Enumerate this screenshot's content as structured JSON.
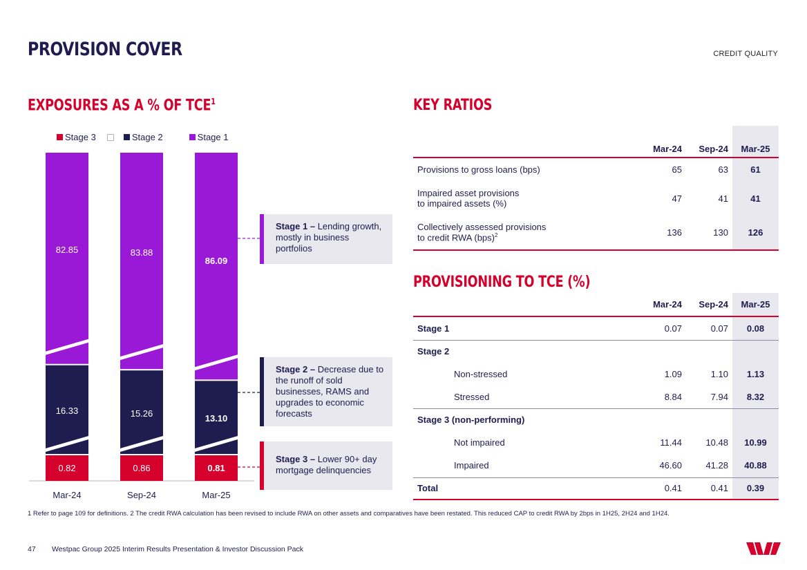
{
  "header": {
    "title": "PROVISION COVER",
    "section": "CREDIT QUALITY"
  },
  "left": {
    "title": "EXPOSURES AS A % OF TCE",
    "title_sup": "1",
    "legend": [
      {
        "label": "Stage 3",
        "color": "#d5002b"
      },
      {
        "label": "",
        "color": "#ffffff"
      },
      {
        "label": "Stage 2",
        "color": "#1f1c4f"
      },
      {
        "label": "Stage 1",
        "color": "#9a19d6"
      }
    ]
  },
  "chart_data": {
    "type": "bar",
    "stacked": true,
    "categories": [
      "Mar-24",
      "Sep-24",
      "Mar-25"
    ],
    "series": [
      {
        "name": "Stage 3",
        "values": [
          0.82,
          0.86,
          0.81
        ],
        "labels": [
          "0.82",
          "0.86",
          "0.81"
        ],
        "color": "#d5002b"
      },
      {
        "name": "Stage 2",
        "values": [
          16.33,
          15.26,
          13.1
        ],
        "labels": [
          "16.33",
          "15.26",
          "13.10"
        ],
        "color": "#1f1c4f"
      },
      {
        "name": "Stage 1",
        "values": [
          82.85,
          83.88,
          86.09
        ],
        "labels": [
          "82.85",
          "83.88",
          "86.09"
        ],
        "color": "#9a19d6"
      }
    ],
    "highlight_category": "Mar-25",
    "axis_break": true
  },
  "callouts": [
    {
      "bold": "Stage 1 –",
      "text": " Lending growth, mostly in business portfolios",
      "color": "#9a19d6"
    },
    {
      "bold": "Stage 2 –",
      "text": " Decrease due to the runoff of sold businesses, RAMS and upgrades to economic forecasts",
      "color": "#1f1c4f"
    },
    {
      "bold": "Stage 3 –",
      "text": " Lower 90+ day mortgage delinquencies",
      "color": "#d5002b"
    }
  ],
  "key_ratios": {
    "title": "KEY RATIOS",
    "columns": [
      "Mar-24",
      "Sep-24",
      "Mar-25"
    ],
    "rows": [
      {
        "label": "Provisions to gross loans (bps)",
        "label2": "",
        "sup": "",
        "values": [
          "65",
          "63",
          "61"
        ]
      },
      {
        "label": "Impaired asset provisions",
        "label2": "to impaired assets (%)",
        "sup": "",
        "values": [
          "47",
          "41",
          "41"
        ]
      },
      {
        "label": "Collectively assessed provisions",
        "label2": "to credit RWA (bps)",
        "sup": "2",
        "values": [
          "136",
          "130",
          "126"
        ]
      }
    ]
  },
  "provisioning": {
    "title": "PROVISIONING TO TCE (%)",
    "columns": [
      "Mar-24",
      "Sep-24",
      "Mar-25"
    ],
    "rows": [
      {
        "label": "Stage 1",
        "values": [
          "0.07",
          "0.07",
          "0.08"
        ]
      },
      {
        "label": "Stage 2",
        "values": [
          "",
          "",
          ""
        ]
      },
      {
        "label": "Non-stressed",
        "values": [
          "1.09",
          "1.10",
          "1.13"
        ]
      },
      {
        "label": "Stressed",
        "values": [
          "8.84",
          "7.94",
          "8.32"
        ]
      },
      {
        "label": "Stage 3 (non-performing)",
        "values": [
          "",
          "",
          ""
        ]
      },
      {
        "label": "Not impaired",
        "values": [
          "11.44",
          "10.48",
          "10.99"
        ]
      },
      {
        "label": "Impaired",
        "values": [
          "46.60",
          "41.28",
          "40.88"
        ]
      },
      {
        "label": "Total",
        "values": [
          "0.41",
          "0.41",
          "0.39"
        ]
      }
    ]
  },
  "footnote": "1 Refer to page 109 for definitions. 2 The credit RWA calculation has been revised to include RWA on other assets and comparatives have been restated. This reduced CAP to credit RWA by 2bps in 1H25, 2H24 and 1H24.",
  "footer": {
    "page": "47",
    "text": "Westpac Group 2025 Interim Results Presentation & Investor Discussion Pack"
  }
}
